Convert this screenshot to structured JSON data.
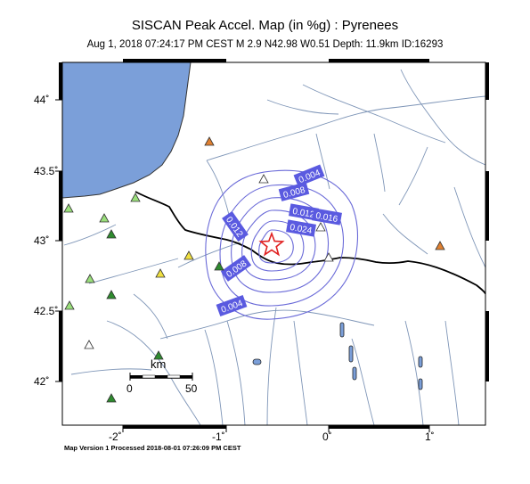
{
  "header": {
    "title": "SISCAN Peak Accel. Map (in %g) : Pyrenees",
    "subtitle": "Aug  1, 2018 07:24:17 PM CEST   M 2.9   N42.98 W0.51   Depth: 11.9km   ID:16293"
  },
  "footer": {
    "text": "Map Version 1 Processed 2018-08-01 07:26:09 PM CEST"
  },
  "axes": {
    "y_ticks": [
      "44˚",
      "43.5˚",
      "43˚",
      "42.5˚",
      "42˚"
    ],
    "x_ticks": [
      "-2˚",
      "-1˚",
      "0˚",
      "1˚"
    ]
  },
  "scale_bar": {
    "unit": "km",
    "start": "0",
    "end": "50"
  },
  "contour_labels": [
    "0.004",
    "0.008",
    "0.012",
    "0.016",
    "0.024",
    "0.012",
    "0.008",
    "0.004"
  ],
  "epicenter": {
    "lat": 42.98,
    "lon": -0.51,
    "depth_km": 11.9,
    "magnitude": 2.9
  },
  "colors": {
    "sea": "#7b9fd9",
    "rivers": "#7e95b7",
    "border": "#000000",
    "contours": "#6a6ad8",
    "contour_label_bg": "#5a5ae0",
    "epicenter_star": "#e02020"
  },
  "stations": [
    {
      "color": "#e08030",
      "kind": "orange"
    },
    {
      "color": "#ffffff",
      "kind": "white"
    },
    {
      "color": "#ffffff",
      "kind": "white"
    },
    {
      "color": "#ffffff",
      "kind": "white"
    },
    {
      "color": "#9adf7b",
      "kind": "light-green"
    },
    {
      "color": "#9adf7b",
      "kind": "light-green"
    },
    {
      "color": "#9adf7b",
      "kind": "light-green"
    },
    {
      "color": "#9adf7b",
      "kind": "light-green"
    },
    {
      "color": "#9adf7b",
      "kind": "light-green"
    },
    {
      "color": "#2e8b2e",
      "kind": "dark-green"
    },
    {
      "color": "#2e8b2e",
      "kind": "dark-green"
    },
    {
      "color": "#2e8b2e",
      "kind": "dark-green"
    },
    {
      "color": "#2e8b2e",
      "kind": "dark-green"
    },
    {
      "color": "#2e8b2e",
      "kind": "dark-green"
    },
    {
      "color": "#f0e040",
      "kind": "yellow"
    },
    {
      "color": "#f0e040",
      "kind": "yellow"
    },
    {
      "color": "#e08030",
      "kind": "orange"
    },
    {
      "color": "#ffffff",
      "kind": "white"
    }
  ]
}
